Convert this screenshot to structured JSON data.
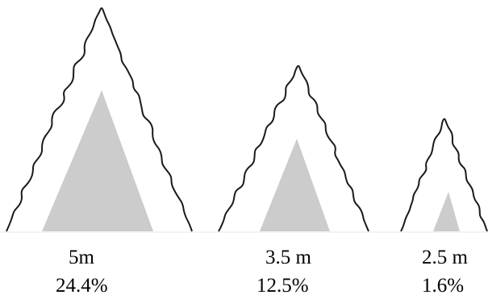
{
  "colors": {
    "outline": "#1a1a1a",
    "core_fill": "#cccccc",
    "background": "#ffffff"
  },
  "trees": [
    {
      "height_label": "5m",
      "percent_label": "24.4%"
    },
    {
      "height_label": "3.5 m",
      "percent_label": "12.5%"
    },
    {
      "height_label": "2.5 m",
      "percent_label": "1.6%"
    }
  ]
}
